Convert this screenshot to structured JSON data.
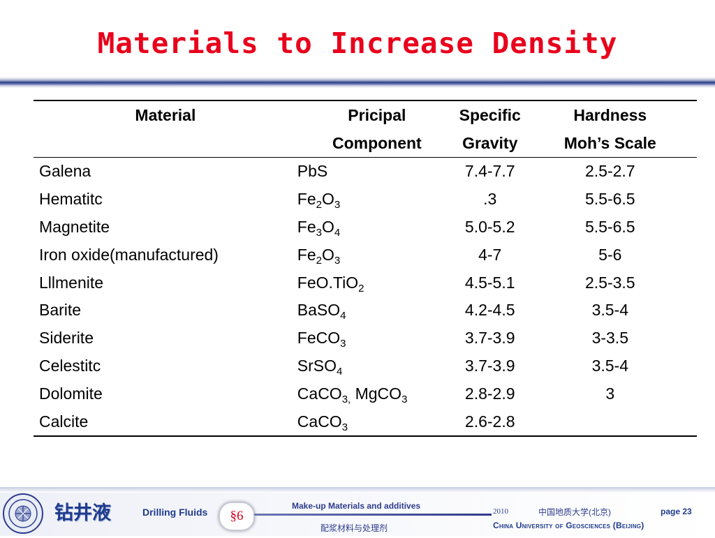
{
  "title": "Materials to Increase Density",
  "table": {
    "headers": {
      "material": "Material",
      "component_1": "Pricipal",
      "component_2": "Component",
      "sg_1": "Specific",
      "sg_2": "Gravity",
      "hardness_1": "Hardness",
      "hardness_2": "Moh’s Scale"
    },
    "rows": [
      {
        "material": "Galena",
        "component": [
          [
            "PbS",
            ""
          ]
        ],
        "gravity": "7.4-7.7",
        "hardness": "2.5-2.7"
      },
      {
        "material": "Hematitc",
        "component": [
          [
            "Fe",
            "2"
          ],
          [
            "O",
            "3"
          ]
        ],
        "gravity": ".3",
        "hardness": "5.5-6.5"
      },
      {
        "material": "Magnetite",
        "component": [
          [
            "Fe",
            "3"
          ],
          [
            "O",
            "4"
          ]
        ],
        "gravity": "5.0-5.2",
        "hardness": "5.5-6.5"
      },
      {
        "material": "Iron oxide(manufactured)",
        "component": [
          [
            "Fe",
            "2"
          ],
          [
            "O",
            "3"
          ]
        ],
        "gravity": "4-7",
        "hardness": "5-6"
      },
      {
        "material": "Lllmenite",
        "component": [
          [
            "FeO.TiO",
            "2"
          ]
        ],
        "gravity": "4.5-5.1",
        "hardness": "2.5-3.5"
      },
      {
        "material": "Barite",
        "component": [
          [
            "BaSO",
            "4"
          ]
        ],
        "gravity": "4.2-4.5",
        "hardness": "3.5-4"
      },
      {
        "material": "Siderite",
        "component": [
          [
            "FeCO",
            "3"
          ]
        ],
        "gravity": "3.7-3.9",
        "hardness": "3-3.5"
      },
      {
        "material": "Celestitc",
        "component": [
          [
            "SrSO",
            "4"
          ]
        ],
        "gravity": "3.7-3.9",
        "hardness": "3.5-4"
      },
      {
        "material": "Dolomite",
        "component": [
          [
            "CaCO",
            "3,"
          ],
          [
            " MgCO",
            "3"
          ]
        ],
        "gravity": "2.8-2.9",
        "hardness": "3"
      },
      {
        "material": "Calcite",
        "component": [
          [
            "CaCO",
            "3"
          ]
        ],
        "gravity": "2.6-2.8",
        "hardness": ""
      }
    ]
  },
  "footer": {
    "brand_cn": "钻井液",
    "brand_en": "Drilling Fluids",
    "section": "§6",
    "topic_en": "Make-up  Materials and additives",
    "topic_cn": "配浆材料与处理剂",
    "year": "2010",
    "university_cn": "中国地质大学(北京)",
    "page": "page 23",
    "university_en": "China University of Geosciences (Beijing)"
  },
  "colors": {
    "title": "#e8001c",
    "footer_blue": "#1f3b8c",
    "section_red": "#d0021b"
  },
  "icons": {
    "emblem": "university-emblem-icon"
  }
}
